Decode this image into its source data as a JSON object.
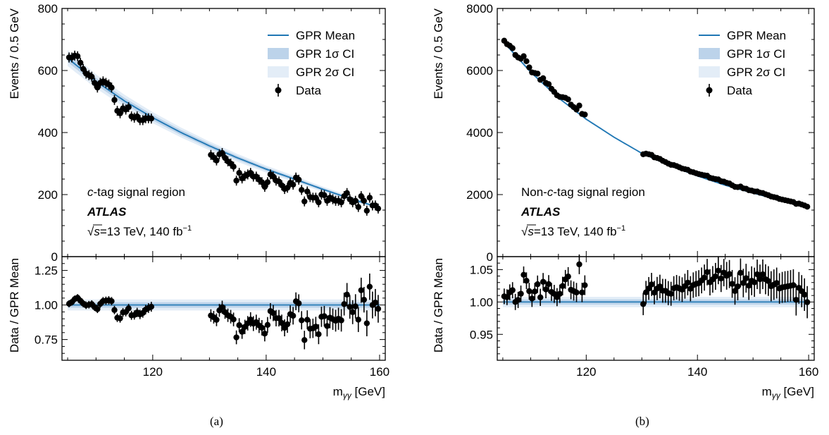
{
  "chart_data": [
    {
      "type": "scatter",
      "panel_caption": "(a)",
      "region_label_prefix": "c",
      "region_label_suffix": "-tag signal region",
      "experiment_label": "ATLAS",
      "energy_label": "=13 TeV, 140 fb",
      "sqrt_symbol": "√s",
      "lumi_superscript": "−1",
      "ylabel_top": "Events / 0.5 GeV",
      "ylabel_bottom": "Data / GPR Mean",
      "xlabel": "m",
      "xlabel_sub": "γγ",
      "xlabel_unit": " [GeV]",
      "xlim": [
        104,
        161
      ],
      "ylim_top": [
        0,
        800
      ],
      "ylim_bottom": [
        0.6,
        1.35
      ],
      "xticks": [
        120,
        140,
        160
      ],
      "yticks_top": [
        0,
        200,
        400,
        600,
        800
      ],
      "yticks_bottom": [
        0.75,
        1.0,
        1.25
      ],
      "legend": {
        "position": "upper-right",
        "entries": [
          "GPR Mean",
          "GPR 1σ CI",
          "GPR 2σ CI",
          "Data"
        ]
      },
      "gpr_mean": {
        "x": [
          105,
          110,
          115,
          120,
          125,
          130,
          135,
          140,
          145,
          150,
          155,
          160
        ],
        "y": [
          640,
          565,
          502,
          448,
          400,
          357,
          318,
          282,
          250,
          217,
          186,
          158
        ]
      },
      "band_1sigma": 0.02,
      "band_2sigma": 0.04,
      "data_gaps": [
        [
          120,
          130
        ]
      ],
      "data": {
        "x": [
          105.25,
          105.75,
          106.25,
          106.75,
          107.25,
          107.75,
          108.25,
          108.75,
          109.25,
          109.75,
          110.25,
          110.75,
          111.25,
          111.75,
          112.25,
          112.75,
          113.25,
          113.75,
          114.25,
          114.75,
          115.25,
          115.75,
          116.25,
          116.75,
          117.25,
          117.75,
          118.25,
          118.75,
          119.25,
          119.75,
          130.25,
          130.75,
          131.25,
          131.75,
          132.25,
          132.75,
          133.25,
          133.75,
          134.25,
          134.75,
          135.25,
          135.75,
          136.25,
          136.75,
          137.25,
          137.75,
          138.25,
          138.75,
          139.25,
          139.75,
          140.25,
          140.75,
          141.25,
          141.75,
          142.25,
          142.75,
          143.25,
          143.75,
          144.25,
          144.75,
          145.25,
          145.75,
          146.25,
          146.75,
          147.25,
          147.75,
          148.25,
          148.75,
          149.25,
          149.75,
          150.25,
          150.75,
          151.25,
          151.75,
          152.25,
          152.75,
          153.25,
          153.75,
          154.25,
          154.75,
          155.25,
          155.75,
          156.25,
          156.75,
          157.25,
          157.75,
          158.25,
          158.75,
          159.25,
          159.75
        ],
        "y": [
          642,
          642,
          648,
          646,
          625,
          605,
          590,
          585,
          580,
          560,
          545,
          560,
          565,
          560,
          555,
          545,
          505,
          470,
          462,
          478,
          474,
          482,
          452,
          448,
          452,
          440,
          440,
          446,
          446,
          445,
          328,
          320,
          310,
          330,
          334,
          318,
          307,
          300,
          290,
          245,
          270,
          252,
          260,
          265,
          270,
          258,
          258,
          248,
          240,
          225,
          240,
          265,
          258,
          245,
          242,
          230,
          218,
          222,
          238,
          232,
          255,
          248,
          215,
          178,
          210,
          192,
          190,
          190,
          175,
          200,
          198,
          180,
          190,
          185,
          180,
          180,
          175,
          195,
          205,
          185,
          175,
          180,
          160,
          195,
          180,
          148,
          190,
          165,
          165,
          155
        ],
        "err": [
          16,
          16,
          16,
          16,
          16,
          16,
          16,
          16,
          16,
          16,
          16,
          16,
          16,
          16,
          16,
          16,
          16,
          16,
          16,
          16,
          16,
          16,
          16,
          16,
          16,
          16,
          16,
          16,
          16,
          16,
          16,
          16,
          16,
          16,
          16,
          16,
          16,
          16,
          16,
          16,
          16,
          16,
          16,
          16,
          16,
          16,
          16,
          16,
          16,
          16,
          16,
          16,
          16,
          16,
          16,
          16,
          16,
          16,
          16,
          16,
          16,
          16,
          16,
          16,
          16,
          16,
          16,
          16,
          16,
          16,
          16,
          16,
          16,
          16,
          16,
          16,
          16,
          16,
          16,
          16,
          16,
          16,
          16,
          16,
          16,
          16,
          16,
          16,
          16,
          16
        ]
      }
    },
    {
      "type": "scatter",
      "panel_caption": "(b)",
      "region_label_prefix": "Non-",
      "region_label_italic": "c",
      "region_label_suffix": "-tag signal region",
      "experiment_label": "ATLAS",
      "energy_label": "=13 TeV, 140 fb",
      "sqrt_symbol": "√s",
      "lumi_superscript": "−1",
      "ylabel_top": "Events / 0.5 GeV",
      "ylabel_bottom": "Data / GPR Mean",
      "xlabel": "m",
      "xlabel_sub": "γγ",
      "xlabel_unit": " [GeV]",
      "xlim": [
        104,
        161
      ],
      "ylim_top": [
        0,
        8000
      ],
      "ylim_bottom": [
        0.91,
        1.07
      ],
      "xticks": [
        120,
        140,
        160
      ],
      "yticks_top": [
        0,
        2000,
        4000,
        6000,
        8000
      ],
      "yticks_bottom": [
        0.95,
        1.0,
        1.05
      ],
      "legend": {
        "position": "upper-right",
        "entries": [
          "GPR Mean",
          "GPR 1σ CI",
          "GPR 2σ CI",
          "Data"
        ]
      },
      "gpr_mean": {
        "x": [
          105,
          110,
          115,
          120,
          125,
          130,
          135,
          140,
          145,
          150,
          155,
          160
        ],
        "y": [
          6950,
          5950,
          5120,
          4430,
          3850,
          3330,
          2940,
          2600,
          2300,
          2050,
          1810,
          1600
        ]
      },
      "band_1sigma": 0.004,
      "band_2sigma": 0.008,
      "data_gaps": [
        [
          120,
          130
        ]
      ],
      "data": {
        "x": [
          105.25,
          105.75,
          106.25,
          106.75,
          107.25,
          107.75,
          108.25,
          108.75,
          109.25,
          109.75,
          110.25,
          110.75,
          111.25,
          111.75,
          112.25,
          112.75,
          113.25,
          113.75,
          114.25,
          114.75,
          115.25,
          115.75,
          116.25,
          116.75,
          117.25,
          117.75,
          118.25,
          118.75,
          119.25,
          119.75,
          130.25,
          130.75,
          131.25,
          131.75,
          132.25,
          132.75,
          133.25,
          133.75,
          134.25,
          134.75,
          135.25,
          135.75,
          136.25,
          136.75,
          137.25,
          137.75,
          138.25,
          138.75,
          139.25,
          139.75,
          140.25,
          140.75,
          141.25,
          141.75,
          142.25,
          142.75,
          143.25,
          143.75,
          144.25,
          144.75,
          145.25,
          145.75,
          146.25,
          146.75,
          147.25,
          147.75,
          148.25,
          148.75,
          149.25,
          149.75,
          150.25,
          150.75,
          151.25,
          151.75,
          152.25,
          152.75,
          153.25,
          153.75,
          154.25,
          154.75,
          155.25,
          155.75,
          156.25,
          156.75,
          157.25,
          157.75,
          158.25,
          158.75,
          159.25,
          159.75
        ],
        "y": [
          6960,
          6850,
          6800,
          6720,
          6500,
          6420,
          6380,
          6460,
          6300,
          6100,
          5940,
          5920,
          5900,
          5700,
          5750,
          5600,
          5560,
          5410,
          5310,
          5200,
          5150,
          5140,
          5120,
          5070,
          4900,
          4820,
          4740,
          4870,
          4600,
          4580,
          3300,
          3320,
          3300,
          3280,
          3200,
          3180,
          3150,
          3090,
          3050,
          3000,
          2960,
          2950,
          2920,
          2880,
          2840,
          2820,
          2800,
          2740,
          2720,
          2690,
          2660,
          2640,
          2620,
          2610,
          2540,
          2520,
          2500,
          2490,
          2430,
          2420,
          2380,
          2360,
          2300,
          2250,
          2240,
          2260,
          2200,
          2190,
          2140,
          2130,
          2100,
          2100,
          2060,
          2050,
          2010,
          1980,
          1940,
          1920,
          1900,
          1860,
          1840,
          1820,
          1800,
          1780,
          1760,
          1700,
          1710,
          1680,
          1650,
          1610
        ],
        "err": [
          83,
          83,
          82,
          82,
          81,
          80,
          80,
          80,
          79,
          78,
          77,
          77,
          77,
          75,
          76,
          75,
          75,
          74,
          73,
          72,
          72,
          72,
          72,
          71,
          70,
          70,
          69,
          70,
          68,
          68,
          57,
          58,
          57,
          57,
          57,
          56,
          56,
          56,
          55,
          55,
          54,
          54,
          54,
          54,
          53,
          53,
          53,
          52,
          52,
          52,
          52,
          51,
          51,
          51,
          50,
          50,
          50,
          50,
          49,
          49,
          49,
          49,
          48,
          47,
          47,
          48,
          47,
          47,
          46,
          46,
          46,
          46,
          45,
          45,
          45,
          44,
          44,
          44,
          44,
          43,
          43,
          43,
          42,
          42,
          42,
          41,
          41,
          41,
          41,
          40
        ]
      }
    }
  ]
}
